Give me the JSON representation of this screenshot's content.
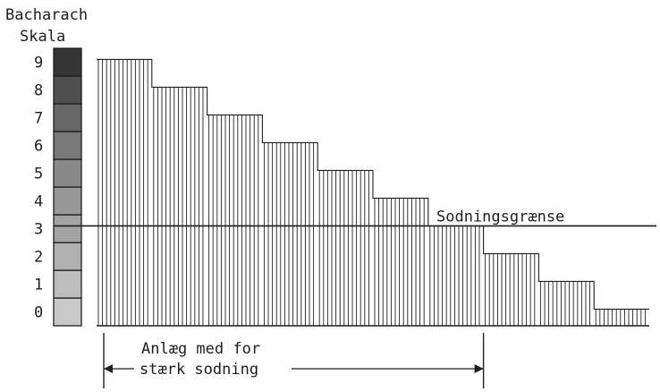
{
  "chart_data": {
    "type": "bar",
    "title": "",
    "scale_label": [
      "Bacharach",
      "Skala"
    ],
    "yticks": [
      0,
      1,
      2,
      3,
      4,
      5,
      6,
      7,
      8,
      9
    ],
    "ylim": [
      0,
      9.5
    ],
    "threshold": {
      "value": 3.6,
      "label": "Sodningsgrænse"
    },
    "steps": [
      {
        "value": 9.6
      },
      {
        "value": 8.6
      },
      {
        "value": 7.6
      },
      {
        "value": 6.6
      },
      {
        "value": 5.6
      },
      {
        "value": 4.6
      },
      {
        "value": 3.6
      },
      {
        "value": 2.6
      },
      {
        "value": 1.6
      },
      {
        "value": 0.6
      }
    ],
    "scale_shades": [
      "#c9c9c9",
      "#bdbdbd",
      "#b1b1b1",
      "#a4a4a4",
      "#979797",
      "#888888",
      "#787878",
      "#656565",
      "#4f4f4f",
      "#353535"
    ],
    "annotation": {
      "lines": [
        "Anlæg med for",
        "stærk sodning"
      ]
    },
    "colors": {
      "ink": "#1e1e1e"
    }
  }
}
